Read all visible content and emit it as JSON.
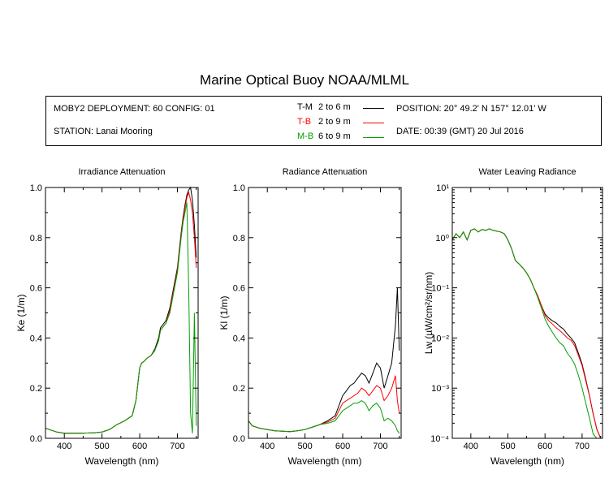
{
  "title": "Marine Optical Buoy NOAA/MLML",
  "info": {
    "deployment": "MOBY2 DEPLOYMENT: 60 CONFIG: 01",
    "station": "STATION: Lanai Mooring",
    "position": "POSITION: 20° 49.2' N   157° 12.01' W",
    "date": "DATE: 00:39 (GMT) 20 Jul 2016"
  },
  "legend": [
    {
      "code": "T-M",
      "range": "2 to 6   m",
      "color": "#000000"
    },
    {
      "code": "T-B",
      "range": "2 to 9   m",
      "color": "#ff0000"
    },
    {
      "code": "M-B",
      "range": "6 to 9   m",
      "color": "#00a000"
    }
  ],
  "chart_data": [
    {
      "type": "line",
      "title": "Irradiance Attenuation",
      "xlabel": "Wavelength (nm)",
      "ylabel": "Ke  (1/m)",
      "xlim": [
        350,
        755
      ],
      "ylim": [
        0,
        1
      ],
      "xticks": [
        400,
        500,
        600,
        700
      ],
      "yticks": [
        0.0,
        0.2,
        0.4,
        0.6,
        0.8,
        1.0
      ],
      "ytick_labels": [
        "0.0",
        "0.2",
        "0.4",
        "0.6",
        "0.8",
        "1.0"
      ],
      "series": [
        {
          "name": "T-M",
          "color": "#000000",
          "x": [
            350,
            360,
            370,
            380,
            400,
            420,
            440,
            460,
            480,
            500,
            520,
            540,
            560,
            580,
            590,
            600,
            605,
            610,
            620,
            630,
            640,
            650,
            655,
            660,
            670,
            680,
            690,
            700,
            705,
            710,
            715,
            720,
            725,
            730,
            735,
            740,
            745,
            750
          ],
          "y": [
            0.04,
            0.035,
            0.03,
            0.025,
            0.02,
            0.02,
            0.02,
            0.021,
            0.022,
            0.025,
            0.035,
            0.055,
            0.07,
            0.09,
            0.15,
            0.28,
            0.3,
            0.305,
            0.32,
            0.33,
            0.355,
            0.4,
            0.44,
            0.45,
            0.47,
            0.52,
            0.6,
            0.68,
            0.75,
            0.82,
            0.88,
            0.93,
            0.97,
            0.99,
            1.0,
            0.95,
            0.85,
            0.72
          ]
        },
        {
          "name": "T-B",
          "color": "#ff0000",
          "x": [
            350,
            360,
            370,
            380,
            400,
            420,
            440,
            460,
            480,
            500,
            520,
            540,
            560,
            580,
            590,
            600,
            605,
            610,
            620,
            630,
            640,
            650,
            655,
            660,
            670,
            680,
            690,
            700,
            705,
            710,
            715,
            720,
            725,
            730,
            735,
            740,
            745,
            750
          ],
          "y": [
            0.04,
            0.035,
            0.03,
            0.025,
            0.02,
            0.02,
            0.02,
            0.021,
            0.022,
            0.025,
            0.035,
            0.055,
            0.07,
            0.09,
            0.15,
            0.28,
            0.3,
            0.305,
            0.32,
            0.33,
            0.35,
            0.39,
            0.43,
            0.44,
            0.46,
            0.51,
            0.59,
            0.67,
            0.74,
            0.81,
            0.87,
            0.92,
            0.96,
            0.98,
            0.95,
            0.9,
            0.8,
            0.68
          ]
        },
        {
          "name": "M-B",
          "color": "#00a000",
          "x": [
            350,
            360,
            370,
            380,
            400,
            420,
            440,
            460,
            480,
            500,
            520,
            540,
            560,
            580,
            590,
            600,
            605,
            610,
            620,
            630,
            640,
            650,
            655,
            660,
            670,
            680,
            690,
            700,
            705,
            710,
            715,
            720,
            725,
            730,
            735,
            740,
            745,
            750
          ],
          "y": [
            0.04,
            0.035,
            0.03,
            0.025,
            0.02,
            0.02,
            0.02,
            0.021,
            0.022,
            0.025,
            0.035,
            0.055,
            0.07,
            0.09,
            0.15,
            0.28,
            0.3,
            0.305,
            0.32,
            0.33,
            0.35,
            0.39,
            0.43,
            0.44,
            0.46,
            0.5,
            0.58,
            0.66,
            0.73,
            0.8,
            0.86,
            0.9,
            0.94,
            0.6,
            0.1,
            0.02,
            0.5,
            0.05
          ]
        }
      ]
    },
    {
      "type": "line",
      "title": "Radiance Attenuation",
      "xlabel": "Wavelength (nm)",
      "ylabel": "Kl  (1/m)",
      "xlim": [
        350,
        755
      ],
      "ylim": [
        0,
        1
      ],
      "xticks": [
        400,
        500,
        600,
        700
      ],
      "yticks": [
        0.0,
        0.2,
        0.4,
        0.6,
        0.8,
        1.0
      ],
      "ytick_labels": [
        "0.0",
        "0.2",
        "0.4",
        "0.6",
        "0.8",
        "1.0"
      ],
      "series": [
        {
          "name": "T-M",
          "color": "#000000",
          "x": [
            350,
            360,
            380,
            400,
            420,
            440,
            460,
            480,
            500,
            520,
            540,
            560,
            580,
            590,
            600,
            610,
            620,
            630,
            640,
            650,
            660,
            670,
            680,
            690,
            700,
            710,
            720,
            730,
            740,
            745,
            750
          ],
          "y": [
            0.07,
            0.05,
            0.04,
            0.035,
            0.03,
            0.028,
            0.027,
            0.03,
            0.035,
            0.045,
            0.055,
            0.07,
            0.09,
            0.13,
            0.17,
            0.19,
            0.21,
            0.22,
            0.24,
            0.26,
            0.25,
            0.22,
            0.26,
            0.3,
            0.28,
            0.2,
            0.25,
            0.3,
            0.45,
            0.6,
            0.35
          ]
        },
        {
          "name": "T-B",
          "color": "#ff0000",
          "x": [
            350,
            360,
            380,
            400,
            420,
            440,
            460,
            480,
            500,
            520,
            540,
            560,
            580,
            590,
            600,
            610,
            620,
            630,
            640,
            650,
            660,
            670,
            680,
            690,
            700,
            710,
            720,
            730,
            740,
            745,
            750
          ],
          "y": [
            0.07,
            0.05,
            0.04,
            0.035,
            0.03,
            0.028,
            0.027,
            0.03,
            0.035,
            0.045,
            0.055,
            0.065,
            0.08,
            0.11,
            0.14,
            0.15,
            0.16,
            0.17,
            0.18,
            0.2,
            0.19,
            0.17,
            0.19,
            0.21,
            0.2,
            0.15,
            0.17,
            0.2,
            0.25,
            0.15,
            0.1
          ]
        },
        {
          "name": "M-B",
          "color": "#00a000",
          "x": [
            350,
            360,
            380,
            400,
            420,
            440,
            460,
            480,
            500,
            520,
            540,
            560,
            580,
            590,
            600,
            610,
            620,
            630,
            640,
            650,
            660,
            670,
            680,
            690,
            700,
            710,
            720,
            730,
            740,
            745,
            750
          ],
          "y": [
            0.07,
            0.05,
            0.04,
            0.035,
            0.03,
            0.028,
            0.027,
            0.03,
            0.035,
            0.045,
            0.055,
            0.06,
            0.07,
            0.09,
            0.11,
            0.12,
            0.13,
            0.14,
            0.14,
            0.15,
            0.14,
            0.11,
            0.13,
            0.14,
            0.12,
            0.07,
            0.08,
            0.07,
            0.05,
            0.03,
            0.02
          ]
        }
      ]
    },
    {
      "type": "line",
      "title": "Water Leaving Radiance",
      "xlabel": "Wavelength (nm)",
      "ylabel": "Lw  (µW/cm²/sr/nm)",
      "yscale": "log",
      "xlim": [
        350,
        755
      ],
      "ylim": [
        0.0001,
        10
      ],
      "xticks": [
        400,
        500,
        600,
        700
      ],
      "yticks": [
        0.0001,
        0.001,
        0.01,
        0.1,
        1,
        10
      ],
      "ytick_labels": [
        "10⁻⁴",
        "10⁻³",
        "10⁻²",
        "10⁻¹",
        "10⁰",
        "10¹"
      ],
      "series": [
        {
          "name": "T-M",
          "color": "#000000",
          "x": [
            350,
            360,
            370,
            380,
            390,
            400,
            410,
            420,
            430,
            440,
            450,
            460,
            470,
            480,
            490,
            500,
            510,
            520,
            530,
            540,
            550,
            560,
            570,
            580,
            590,
            600,
            610,
            620,
            630,
            640,
            650,
            660,
            670,
            680,
            690,
            700,
            710,
            720,
            730,
            740,
            750
          ],
          "y": [
            0.9,
            1.2,
            1.0,
            1.3,
            0.9,
            1.4,
            1.5,
            1.3,
            1.45,
            1.4,
            1.5,
            1.4,
            1.35,
            1.3,
            1.2,
            0.9,
            0.6,
            0.35,
            0.3,
            0.25,
            0.2,
            0.15,
            0.1,
            0.07,
            0.045,
            0.03,
            0.025,
            0.022,
            0.02,
            0.017,
            0.015,
            0.012,
            0.01,
            0.008,
            0.005,
            0.003,
            0.0015,
            0.0007,
            0.0003,
            0.00015,
            0.0001
          ]
        },
        {
          "name": "T-B",
          "color": "#ff0000",
          "x": [
            350,
            360,
            370,
            380,
            390,
            400,
            410,
            420,
            430,
            440,
            450,
            460,
            470,
            480,
            490,
            500,
            510,
            520,
            530,
            540,
            550,
            560,
            570,
            580,
            590,
            600,
            610,
            620,
            630,
            640,
            650,
            660,
            670,
            680,
            690,
            700,
            710,
            720,
            730,
            740,
            750
          ],
          "y": [
            0.9,
            1.2,
            1.0,
            1.3,
            0.9,
            1.4,
            1.5,
            1.3,
            1.45,
            1.4,
            1.5,
            1.4,
            1.35,
            1.3,
            1.2,
            0.9,
            0.6,
            0.35,
            0.3,
            0.25,
            0.2,
            0.15,
            0.1,
            0.07,
            0.045,
            0.028,
            0.022,
            0.019,
            0.016,
            0.014,
            0.012,
            0.01,
            0.009,
            0.007,
            0.0045,
            0.0028,
            0.0014,
            0.0007,
            0.0003,
            0.00015,
            0.0001
          ]
        },
        {
          "name": "M-B",
          "color": "#00a000",
          "x": [
            350,
            360,
            370,
            380,
            390,
            400,
            410,
            420,
            430,
            440,
            450,
            460,
            470,
            480,
            490,
            500,
            510,
            520,
            530,
            540,
            550,
            560,
            570,
            580,
            590,
            600,
            610,
            620,
            630,
            640,
            650,
            660,
            670,
            680,
            690,
            700,
            710,
            720,
            730,
            740,
            750
          ],
          "y": [
            0.9,
            1.2,
            1.0,
            1.3,
            0.9,
            1.4,
            1.5,
            1.3,
            1.45,
            1.4,
            1.5,
            1.4,
            1.35,
            1.3,
            1.2,
            0.9,
            0.6,
            0.35,
            0.3,
            0.25,
            0.2,
            0.15,
            0.1,
            0.065,
            0.04,
            0.024,
            0.017,
            0.013,
            0.01,
            0.008,
            0.007,
            0.005,
            0.004,
            0.003,
            0.0018,
            0.001,
            0.0005,
            0.00025,
            0.00012,
            0.0001,
            0.0001
          ]
        }
      ]
    }
  ]
}
